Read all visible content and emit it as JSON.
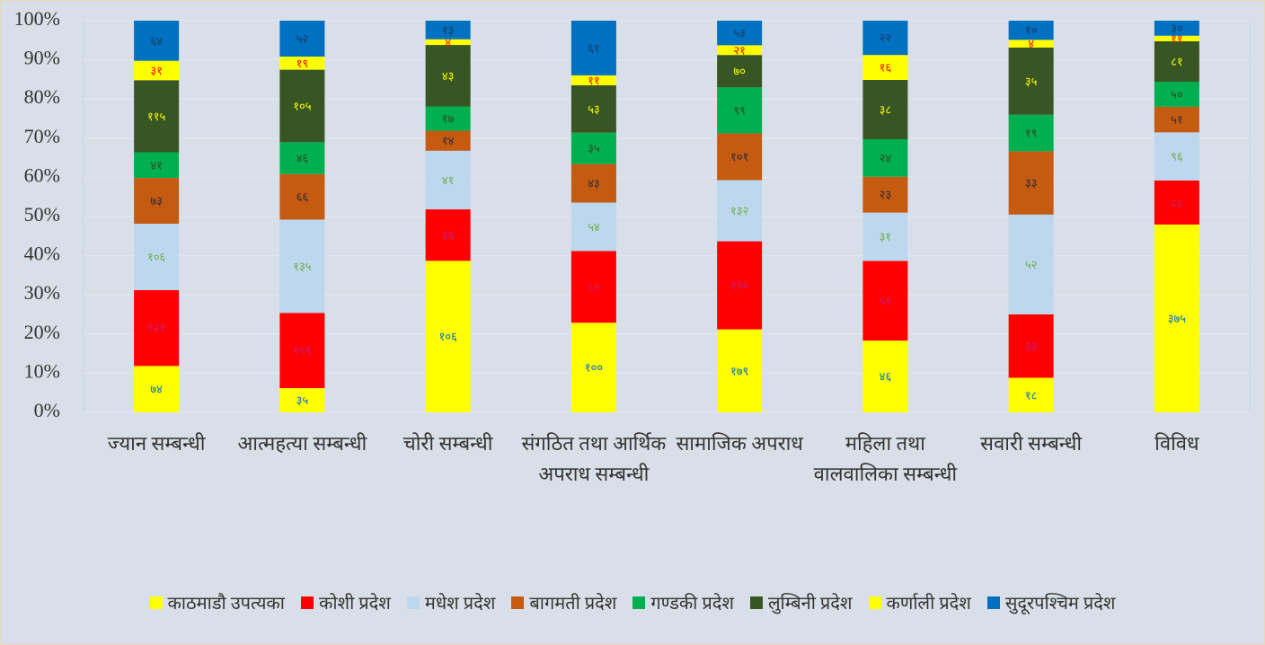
{
  "chart_data": {
    "type": "bar",
    "stacked": "percent",
    "categories": [
      "ज्यान सम्बन्धी",
      "आत्महत्या सम्बन्धी",
      "चोरी सम्बन्धी",
      "संगठित तथा आर्थिक अपराध सम्बन्धी",
      "सामाजिक अपराध",
      "महिला तथा वालवालिका सम्बन्धी",
      "सवारी सम्बन्धी",
      "विविध"
    ],
    "series": [
      {
        "name": "काठमाडौ उपत्यका",
        "color": "#ffff00",
        "label_color": "#0070c0",
        "values": [
          74,
          35,
          106,
          100,
          179,
          46,
          18,
          375
        ],
        "value_labels": [
          "७४",
          "३५",
          "१०६",
          "१००",
          "१७९",
          "४६",
          "१८",
          "३७५"
        ]
      },
      {
        "name": "कोशी प्रदेश",
        "color": "#ff0000",
        "label_color": "#c0208a",
        "values": [
          121,
          109,
          36,
          80,
          190,
          51,
          33,
          88
        ],
        "value_labels": [
          "१२१",
          "१०९",
          "३६",
          "८०",
          "१९०",
          "५१",
          "३३",
          "८८"
        ]
      },
      {
        "name": "मधेश प्रदेश",
        "color": "#bdd7ee",
        "label_color": "#70ad47",
        "values": [
          106,
          135,
          41,
          54,
          132,
          31,
          52,
          96
        ],
        "value_labels": [
          "१०६",
          "१३५",
          "४१",
          "५४",
          "१३२",
          "३१",
          "५२",
          "९६"
        ]
      },
      {
        "name": "बागमती प्रदेश",
        "color": "#c55a11",
        "label_color": "#2b2b3b",
        "values": [
          73,
          66,
          14,
          43,
          101,
          23,
          33,
          51
        ],
        "value_labels": [
          "७३",
          "६६",
          "१४",
          "४३",
          "१०१",
          "२३",
          "३३",
          "५१"
        ]
      },
      {
        "name": "गण्डकी प्रदेश",
        "color": "#00b050",
        "label_color": "#2e4a1e",
        "values": [
          41,
          46,
          17,
          35,
          99,
          24,
          19,
          50
        ],
        "value_labels": [
          "४१",
          "४६",
          "१७",
          "३५",
          "९९",
          "२४",
          "१९",
          "५०"
        ]
      },
      {
        "name": "लुम्बिनी प्रदेश",
        "color": "#375623",
        "label_color": "#ffff00",
        "values": [
          115,
          105,
          43,
          53,
          70,
          38,
          35,
          81
        ],
        "value_labels": [
          "११५",
          "१०५",
          "४३",
          "५३",
          "७०",
          "३८",
          "३५",
          "८१"
        ]
      },
      {
        "name": "कर्णाली प्रदेश",
        "color": "#ffff00",
        "label_color": "#ff0000",
        "values": [
          31,
          19,
          4,
          11,
          21,
          16,
          4,
          11
        ],
        "value_labels": [
          "३१",
          "१९",
          "४",
          "११",
          "२१",
          "१६",
          "४",
          "११"
        ]
      },
      {
        "name": "सुदूरपश्चिम प्रदेश",
        "color": "#0070c0",
        "label_color": "#1f3864",
        "values": [
          64,
          52,
          13,
          61,
          53,
          22,
          10,
          30
        ],
        "value_labels": [
          "६४",
          "५२",
          "१३",
          "६१",
          "५३",
          "२२",
          "१०",
          "३०"
        ]
      }
    ],
    "ylim": [
      0,
      100
    ],
    "yticks": [
      {
        "value": 0,
        "label": "0%"
      },
      {
        "value": 10,
        "label": "10%"
      },
      {
        "value": 20,
        "label": "20%"
      },
      {
        "value": 30,
        "label": "30%"
      },
      {
        "value": 40,
        "label": "40%"
      },
      {
        "value": 50,
        "label": "50%"
      },
      {
        "value": 60,
        "label": "60%"
      },
      {
        "value": 70,
        "label": "70%"
      },
      {
        "value": 80,
        "label": "80%"
      },
      {
        "value": 90,
        "label": "90%"
      },
      {
        "value": 100,
        "label": "100%"
      }
    ],
    "grid": true,
    "legend": "bottom"
  }
}
